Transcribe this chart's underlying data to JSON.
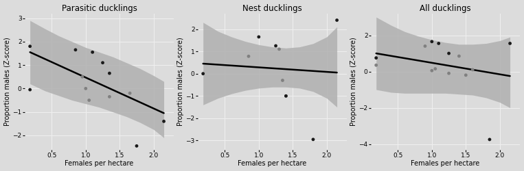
{
  "panels": [
    {
      "title": "Parasitic ducklings",
      "xlabel": "Females per hectare",
      "ylabel": "Proportion males (Z-score)",
      "xlim": [
        0.1,
        2.3
      ],
      "ylim": [
        -2.6,
        3.2
      ],
      "yticks": [
        -2,
        -1,
        0,
        1,
        2,
        3
      ],
      "xticks": [
        0.5,
        1.0,
        1.5,
        2.0
      ],
      "black_dots": [
        [
          0.18,
          1.8
        ],
        [
          0.18,
          -0.05
        ],
        [
          0.85,
          1.65
        ],
        [
          1.1,
          1.55
        ],
        [
          1.25,
          1.1
        ],
        [
          1.35,
          0.65
        ],
        [
          1.75,
          -2.45
        ],
        [
          2.15,
          -1.4
        ]
      ],
      "gray_dots": [
        [
          0.95,
          0.5
        ],
        [
          1.0,
          0.0
        ],
        [
          1.05,
          -0.5
        ],
        [
          1.35,
          -0.35
        ],
        [
          1.65,
          -0.2
        ]
      ],
      "line_x": [
        0.18,
        2.15
      ],
      "line_y": [
        1.55,
        -1.05
      ],
      "ci_x": [
        0.18,
        0.4,
        0.6,
        0.8,
        1.0,
        1.2,
        1.4,
        1.6,
        1.8,
        2.0,
        2.15
      ],
      "ci_upper": [
        2.9,
        2.55,
        2.25,
        2.0,
        1.75,
        1.55,
        1.35,
        1.1,
        0.85,
        0.55,
        0.3
      ],
      "ci_lower": [
        0.2,
        -0.1,
        -0.3,
        -0.5,
        -0.65,
        -0.8,
        -1.0,
        -1.2,
        -1.45,
        -1.75,
        -2.1
      ]
    },
    {
      "title": "Nest ducklings",
      "xlabel": "Females per hectare",
      "ylabel": "Proportion males (Z-score)",
      "xlim": [
        0.1,
        2.3
      ],
      "ylim": [
        -3.4,
        2.7
      ],
      "yticks": [
        -3,
        -2,
        -1,
        0,
        1,
        2
      ],
      "xticks": [
        0.5,
        1.0,
        1.5,
        2.0
      ],
      "black_dots": [
        [
          0.18,
          0.0
        ],
        [
          1.0,
          1.65
        ],
        [
          1.25,
          1.25
        ],
        [
          1.4,
          -1.0
        ],
        [
          1.8,
          -2.95
        ],
        [
          2.15,
          2.4
        ]
      ],
      "gray_dots": [
        [
          0.85,
          0.78
        ],
        [
          1.3,
          1.1
        ],
        [
          1.35,
          -0.3
        ],
        [
          1.4,
          -1.0
        ]
      ],
      "line_x": [
        0.18,
        2.15
      ],
      "line_y": [
        0.45,
        0.05
      ],
      "ci_x": [
        0.18,
        0.4,
        0.6,
        0.8,
        1.0,
        1.2,
        1.4,
        1.6,
        1.8,
        2.0,
        2.15
      ],
      "ci_upper": [
        2.3,
        1.9,
        1.65,
        1.45,
        1.3,
        1.2,
        1.15,
        1.2,
        1.35,
        1.65,
        2.1
      ],
      "ci_lower": [
        -1.4,
        -1.1,
        -0.9,
        -0.75,
        -0.65,
        -0.6,
        -0.6,
        -0.65,
        -0.8,
        -1.1,
        -1.5
      ]
    },
    {
      "title": "All ducklings",
      "xlabel": "Females per hectare",
      "ylabel": "Proportion males (Z-score)",
      "xlim": [
        0.1,
        2.3
      ],
      "ylim": [
        -4.3,
        3.2
      ],
      "yticks": [
        -4,
        -2,
        0,
        2
      ],
      "xticks": [
        0.5,
        1.0,
        1.5,
        2.0
      ],
      "black_dots": [
        [
          0.18,
          0.75
        ],
        [
          1.0,
          1.65
        ],
        [
          1.1,
          1.55
        ],
        [
          1.25,
          1.0
        ],
        [
          1.85,
          -3.75
        ],
        [
          2.15,
          1.55
        ]
      ],
      "gray_dots": [
        [
          0.18,
          0.35
        ],
        [
          0.9,
          1.4
        ],
        [
          1.0,
          0.05
        ],
        [
          1.05,
          0.15
        ],
        [
          1.25,
          -0.1
        ],
        [
          1.4,
          0.85
        ],
        [
          1.5,
          -0.2
        ],
        [
          1.6,
          0.1
        ]
      ],
      "line_x": [
        0.18,
        2.15
      ],
      "line_y": [
        1.0,
        -0.25
      ],
      "ci_x": [
        0.18,
        0.4,
        0.6,
        0.8,
        1.0,
        1.2,
        1.4,
        1.6,
        1.8,
        2.0,
        2.15
      ],
      "ci_upper": [
        3.0,
        2.55,
        2.2,
        1.95,
        1.75,
        1.6,
        1.5,
        1.5,
        1.55,
        1.7,
        1.9
      ],
      "ci_lower": [
        -1.0,
        -1.15,
        -1.2,
        -1.2,
        -1.2,
        -1.2,
        -1.25,
        -1.3,
        -1.45,
        -1.7,
        -2.0
      ]
    }
  ],
  "bg_color": "#dcdcdc",
  "grid_color": "#f0f0f0",
  "ci_color": "#b0b0b0",
  "line_color": "#000000",
  "black_dot_color": "#1a1a1a",
  "gray_dot_color": "#808080",
  "dot_size": 12,
  "line_width": 1.8,
  "title_fontsize": 8.5,
  "label_fontsize": 7.0,
  "tick_fontsize": 6.5
}
